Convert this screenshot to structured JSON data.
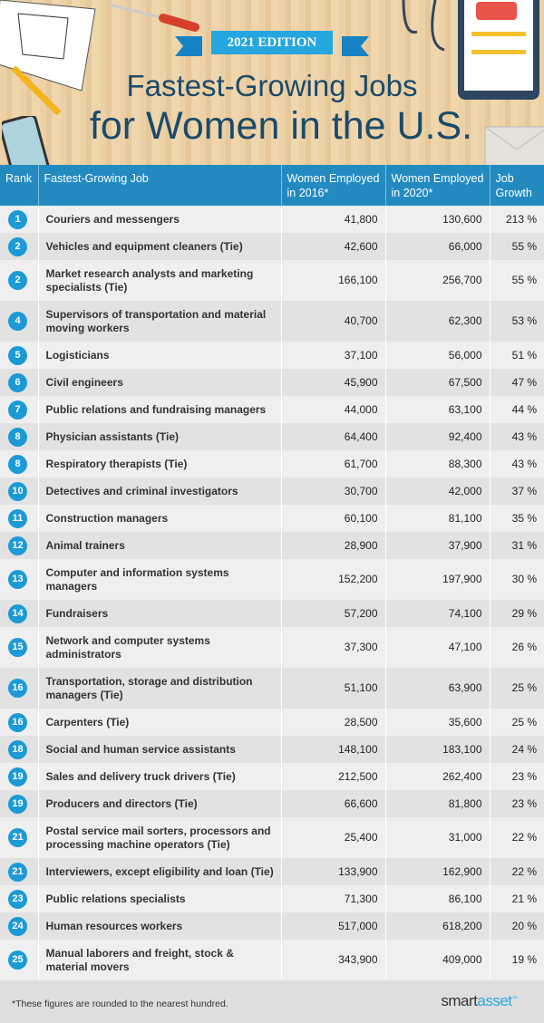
{
  "header": {
    "edition": "2021 EDITION",
    "title_line1": "Fastest-Growing Jobs",
    "title_line2": "for Women in the U.S."
  },
  "table": {
    "columns": [
      "Rank",
      "Fastest-Growing Job",
      "Women Employed in 2016*",
      "Women Employed in 2020*",
      "Job Growth"
    ],
    "rows": [
      {
        "rank": "1",
        "job": "Couriers and messengers",
        "y2016": "41,800",
        "y2020": "130,600",
        "growth": "213 %"
      },
      {
        "rank": "2",
        "job": "Vehicles and equipment cleaners (Tie)",
        "y2016": "42,600",
        "y2020": "66,000",
        "growth": "55 %"
      },
      {
        "rank": "2",
        "job": "Market research analysts and marketing specialists (Tie)",
        "y2016": "166,100",
        "y2020": "256,700",
        "growth": "55 %"
      },
      {
        "rank": "4",
        "job": "Supervisors of transportation and material moving workers",
        "y2016": "40,700",
        "y2020": "62,300",
        "growth": "53 %"
      },
      {
        "rank": "5",
        "job": "Logisticians",
        "y2016": "37,100",
        "y2020": "56,000",
        "growth": "51 %"
      },
      {
        "rank": "6",
        "job": "Civil engineers",
        "y2016": "45,900",
        "y2020": "67,500",
        "growth": "47 %"
      },
      {
        "rank": "7",
        "job": "Public relations and fundraising managers",
        "y2016": "44,000",
        "y2020": "63,100",
        "growth": "44 %"
      },
      {
        "rank": "8",
        "job": "Physician assistants (Tie)",
        "y2016": "64,400",
        "y2020": "92,400",
        "growth": "43 %"
      },
      {
        "rank": "8",
        "job": "Respiratory therapists (Tie)",
        "y2016": "61,700",
        "y2020": "88,300",
        "growth": "43 %"
      },
      {
        "rank": "10",
        "job": "Detectives and criminal investigators",
        "y2016": "30,700",
        "y2020": "42,000",
        "growth": "37 %"
      },
      {
        "rank": "11",
        "job": "Construction managers",
        "y2016": "60,100",
        "y2020": "81,100",
        "growth": "35 %"
      },
      {
        "rank": "12",
        "job": "Animal trainers",
        "y2016": "28,900",
        "y2020": "37,900",
        "growth": "31 %"
      },
      {
        "rank": "13",
        "job": "Computer and information systems managers",
        "y2016": "152,200",
        "y2020": "197,900",
        "growth": "30 %"
      },
      {
        "rank": "14",
        "job": "Fundraisers",
        "y2016": "57,200",
        "y2020": "74,100",
        "growth": "29 %"
      },
      {
        "rank": "15",
        "job": "Network and computer systems administrators",
        "y2016": "37,300",
        "y2020": "47,100",
        "growth": "26 %"
      },
      {
        "rank": "16",
        "job": "Transportation, storage and distribution managers (Tie)",
        "y2016": "51,100",
        "y2020": "63,900",
        "growth": "25 %"
      },
      {
        "rank": "16",
        "job": "Carpenters (Tie)",
        "y2016": "28,500",
        "y2020": "35,600",
        "growth": "25 %"
      },
      {
        "rank": "18",
        "job": "Social and human service assistants",
        "y2016": "148,100",
        "y2020": "183,100",
        "growth": "24 %"
      },
      {
        "rank": "19",
        "job": "Sales and delivery truck drivers (Tie)",
        "y2016": "212,500",
        "y2020": "262,400",
        "growth": "23 %"
      },
      {
        "rank": "19",
        "job": "Producers and directors (Tie)",
        "y2016": "66,600",
        "y2020": "81,800",
        "growth": "23 %"
      },
      {
        "rank": "21",
        "job": "Postal service mail sorters, processors and processing machine operators (Tie)",
        "y2016": "25,400",
        "y2020": "31,000",
        "growth": "22 %"
      },
      {
        "rank": "21",
        "job": "Interviewers, except eligibility and loan (Tie)",
        "y2016": "133,900",
        "y2020": "162,900",
        "growth": "22 %"
      },
      {
        "rank": "23",
        "job": "Public relations specialists",
        "y2016": "71,300",
        "y2020": "86,100",
        "growth": "21 %"
      },
      {
        "rank": "24",
        "job": "Human resources workers",
        "y2016": "517,000",
        "y2020": "618,200",
        "growth": "20 %"
      },
      {
        "rank": "25",
        "job": "Manual laborers and freight, stock & material movers",
        "y2016": "343,900",
        "y2020": "409,000",
        "growth": "19 %"
      }
    ]
  },
  "footer": {
    "note": "*These figures are rounded to the nearest hundred.",
    "logo_part1": "smart",
    "logo_part2": "asset",
    "logo_tm": "™"
  },
  "colors": {
    "header_blue": "#238ac0",
    "rank_blue": "#1c9ad6",
    "title": "#1b4a6b"
  }
}
